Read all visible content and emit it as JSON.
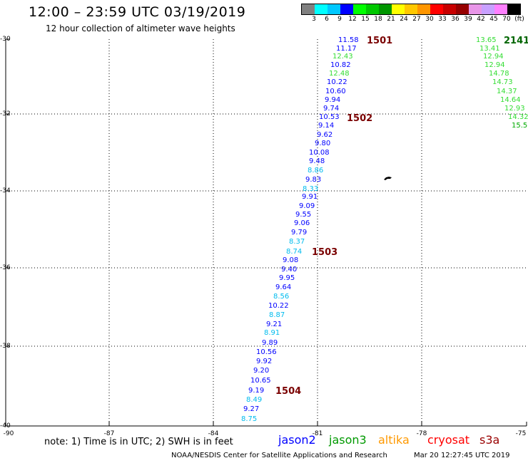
{
  "header": {
    "title": "12:00 – 23:59 UTC 03/19/2019",
    "subtitle": "12 hour collection of altimeter wave heights"
  },
  "colorbar": {
    "colors": [
      "#808080",
      "#00ffff",
      "#00c8ff",
      "#0000ff",
      "#00ff00",
      "#00c800",
      "#009600",
      "#ffff00",
      "#ffc800",
      "#ff9600",
      "#ff0000",
      "#c80000",
      "#960000",
      "#e896e8",
      "#c8a0ff",
      "#ff80ff",
      "#000000"
    ],
    "labels": [
      "3",
      "6",
      "9",
      "12",
      "15",
      "18",
      "21",
      "24",
      "27",
      "30",
      "33",
      "36",
      "39",
      "42",
      "45",
      "70",
      "(ft)"
    ]
  },
  "axes": {
    "lat_labels": [
      "-30",
      "-32",
      "-34",
      "-36",
      "-38",
      "-40"
    ],
    "lon_labels": [
      "-90",
      "-87",
      "-84",
      "-81",
      "-78",
      "-75"
    ]
  },
  "tracks": {
    "jason2": {
      "color_main": "#0000ff",
      "color_light": "#00bbee",
      "points": [
        {
          "v": "11.58",
          "c": "d"
        },
        {
          "v": "11.17",
          "c": "d"
        },
        {
          "v": "12.43",
          "c": "g"
        },
        {
          "v": "10.82",
          "c": "d"
        },
        {
          "v": "12.48",
          "c": "g"
        },
        {
          "v": "10.22",
          "c": "d"
        },
        {
          "v": "10.60",
          "c": "d"
        },
        {
          "v": "9.94",
          "c": "d"
        },
        {
          "v": "9.74",
          "c": "d"
        },
        {
          "v": "10.53",
          "c": "d"
        },
        {
          "v": "9.14",
          "c": "d"
        },
        {
          "v": "9.62",
          "c": "d"
        },
        {
          "v": "9.80",
          "c": "d"
        },
        {
          "v": "10.08",
          "c": "d"
        },
        {
          "v": "9.48",
          "c": "d"
        },
        {
          "v": "8.86",
          "c": "l"
        },
        {
          "v": "9.83",
          "c": "d"
        },
        {
          "v": "8.33",
          "c": "l"
        },
        {
          "v": "9.91",
          "c": "d"
        },
        {
          "v": "9.09",
          "c": "d"
        },
        {
          "v": "9.55",
          "c": "d"
        },
        {
          "v": "9.06",
          "c": "d"
        },
        {
          "v": "9.79",
          "c": "d"
        },
        {
          "v": "8.37",
          "c": "l"
        },
        {
          "v": "8.74",
          "c": "l"
        },
        {
          "v": "9.08",
          "c": "d"
        },
        {
          "v": "9.40",
          "c": "d"
        },
        {
          "v": "9.95",
          "c": "d"
        },
        {
          "v": "9.64",
          "c": "d"
        },
        {
          "v": "8.56",
          "c": "l"
        },
        {
          "v": "10.22",
          "c": "d"
        },
        {
          "v": "8.87",
          "c": "l"
        },
        {
          "v": "9.21",
          "c": "d"
        },
        {
          "v": "8.91",
          "c": "l"
        },
        {
          "v": "9.89",
          "c": "d"
        },
        {
          "v": "10.56",
          "c": "d"
        },
        {
          "v": "9.92",
          "c": "d"
        },
        {
          "v": "9.20",
          "c": "d"
        },
        {
          "v": "10.65",
          "c": "d"
        },
        {
          "v": "9.19",
          "c": "d"
        },
        {
          "v": "8.49",
          "c": "l"
        },
        {
          "v": "9.27",
          "c": "d"
        },
        {
          "v": "8.75",
          "c": "l"
        }
      ]
    },
    "jason3": {
      "color": "#33dd33",
      "color_dark": "#00aa00",
      "points": [
        {
          "v": "13.65"
        },
        {
          "v": "13.41"
        },
        {
          "v": "12.94"
        },
        {
          "v": "12.94"
        },
        {
          "v": "14.78"
        },
        {
          "v": "14.73"
        },
        {
          "v": "14.37"
        },
        {
          "v": "14.64"
        },
        {
          "v": "12.93"
        },
        {
          "v": "14.32"
        },
        {
          "v": "15.5"
        }
      ]
    }
  },
  "passes": [
    {
      "label": "1501"
    },
    {
      "label": "1502"
    },
    {
      "label": "1503"
    },
    {
      "label": "1504"
    },
    {
      "label": "2141"
    }
  ],
  "note": "note:  1) Time is in UTC;  2) SWH is in feet",
  "legend": [
    {
      "name": "jason2",
      "color": "#0000ff"
    },
    {
      "name": "jason3",
      "color": "#009900"
    },
    {
      "name": "altika",
      "color": "#ff9900"
    },
    {
      "name": "cryosat",
      "color": "#ff0000"
    },
    {
      "name": "s3a",
      "color": "#990000"
    }
  ],
  "footer": {
    "credit": "NOAA/NESDIS Center for Satellite Applications and Research",
    "timestamp": "Mar 20 12:27:45 UTC 2019"
  }
}
